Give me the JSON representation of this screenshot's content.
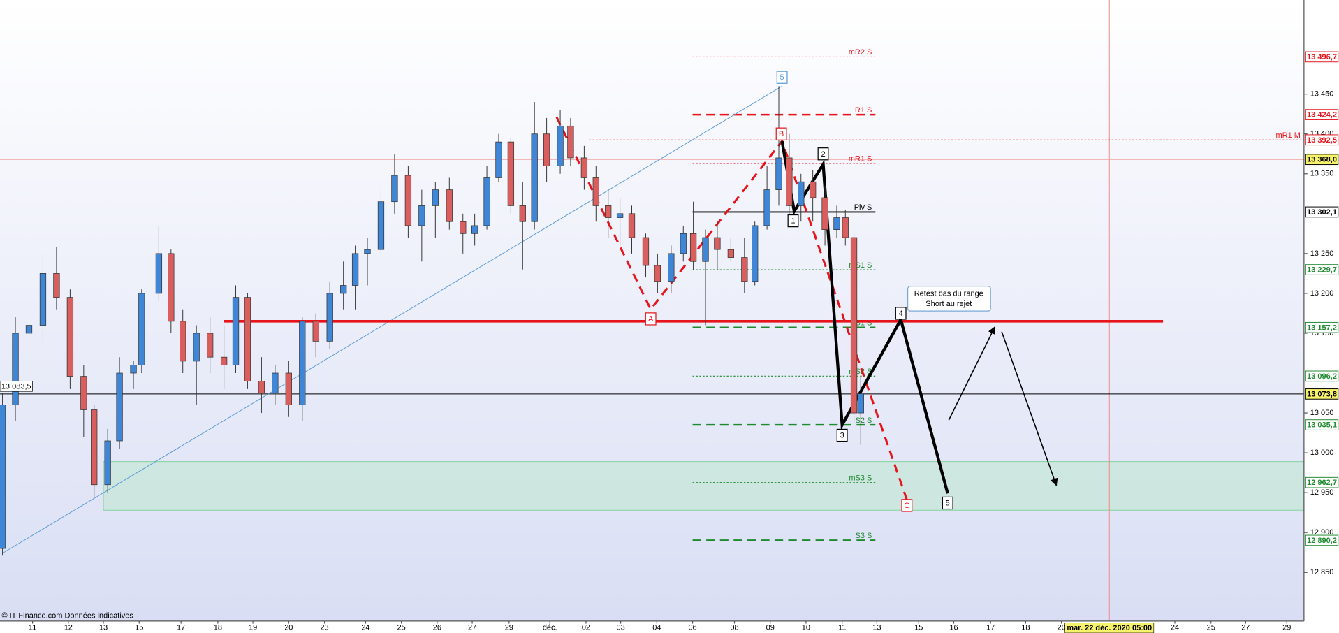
{
  "chart_data": {
    "type": "candlestick",
    "x": [
      -0.84,
      -0.48,
      -0.1,
      0.29,
      0.67,
      1.05,
      1.43,
      1.72,
      2.1,
      2.43,
      2.82,
      3.05,
      3.53,
      3.87,
      4.2,
      4.58,
      4.96,
      5.35,
      5.68,
      6.01,
      6.4,
      6.78,
      7.16,
      7.54,
      7.92,
      8.31,
      8.69,
      9.02,
      9.36,
      9.74,
      10.12,
      10.5,
      10.88,
      11.26,
      11.65,
      12.03,
      12.36,
      12.7,
      13.03,
      13.37,
      13.7,
      14.03,
      14.37,
      14.75,
      15.04,
      15.42,
      15.75,
      16.09,
      16.42,
      16.75,
      17.14,
      17.47,
      17.85,
      18.19,
      18.47,
      18.81,
      19.14,
      19.52,
      19.9,
      20.19,
      20.53,
      20.86,
      21.15,
      21.48,
      21.81,
      22.15,
      22.48,
      22.72,
      22.96,
      23.15
    ],
    "open": [
      12880,
      13060,
      13150,
      13160,
      13225,
      13195,
      13096,
      13054,
      12960,
      13015,
      13100,
      13110,
      13200,
      13250,
      13165,
      13115,
      13150,
      13120,
      13110,
      13195,
      13090,
      13075,
      13100,
      13060,
      13165,
      13140,
      13200,
      13210,
      13250,
      13255,
      13315,
      13348,
      13285,
      13310,
      13330,
      13290,
      13275,
      13285,
      13345,
      13390,
      13310,
      13290,
      13400,
      13360,
      13410,
      13370,
      13345,
      13310,
      13295,
      13300,
      13270,
      13235,
      13215,
      13250,
      13275,
      13240,
      13270,
      13255,
      13245,
      13215,
      13285,
      13330,
      13370,
      13310,
      13340,
      13320,
      13280,
      13295,
      13270,
      13050
    ],
    "high": [
      13075,
      13170,
      13215,
      13250,
      13258,
      13205,
      13110,
      13060,
      13030,
      13120,
      13115,
      13205,
      13285,
      13255,
      13180,
      13160,
      13170,
      13160,
      13210,
      13200,
      13120,
      13110,
      13115,
      13170,
      13175,
      13215,
      13240,
      13260,
      13270,
      13330,
      13375,
      13360,
      13330,
      13340,
      13345,
      13300,
      13300,
      13360,
      13400,
      13395,
      13340,
      13440,
      13420,
      13430,
      13420,
      13385,
      13360,
      13330,
      13320,
      13310,
      13275,
      13250,
      13260,
      13285,
      13315,
      13280,
      13290,
      13270,
      13270,
      13290,
      13360,
      13460,
      13400,
      13350,
      13355,
      13335,
      13310,
      13305,
      13275,
      13095
    ],
    "low": [
      12871,
      13040,
      13120,
      13140,
      13180,
      13080,
      13020,
      12945,
      12950,
      13005,
      13080,
      13100,
      13190,
      13150,
      13100,
      13060,
      13100,
      13080,
      13100,
      13080,
      13050,
      13060,
      13045,
      13040,
      13120,
      13130,
      13180,
      13180,
      13210,
      13250,
      13300,
      13270,
      13240,
      13270,
      13280,
      13250,
      13260,
      13280,
      13340,
      13300,
      13230,
      13280,
      13340,
      13350,
      13360,
      13330,
      13290,
      13270,
      13260,
      13250,
      13220,
      13200,
      13200,
      13240,
      13230,
      13160,
      13230,
      13240,
      13200,
      13210,
      13280,
      13310,
      13290,
      13290,
      13290,
      13260,
      13270,
      13260,
      13040,
      13010
    ],
    "close": [
      13060,
      13150,
      13160,
      13225,
      13195,
      13096,
      13054,
      12960,
      13015,
      13100,
      13110,
      13200,
      13250,
      13165,
      13115,
      13150,
      13120,
      13110,
      13195,
      13090,
      13075,
      13100,
      13060,
      13165,
      13140,
      13200,
      13210,
      13250,
      13255,
      13315,
      13348,
      13285,
      13310,
      13330,
      13290,
      13275,
      13285,
      13345,
      13390,
      13310,
      13290,
      13400,
      13360,
      13410,
      13370,
      13345,
      13310,
      13295,
      13300,
      13270,
      13235,
      13215,
      13250,
      13275,
      13240,
      13270,
      13255,
      13245,
      13215,
      13285,
      13330,
      13370,
      13310,
      13340,
      13320,
      13280,
      13295,
      13270,
      13050,
      13074
    ],
    "up_color": "#3f86d6",
    "down_color": "#d95f5f",
    "xlim": [
      -0.91,
      35.54
    ],
    "ylim": [
      12789,
      13568
    ],
    "xticks": [
      {
        "value": 0,
        "label": "11"
      },
      {
        "value": 1.0,
        "label": "12"
      },
      {
        "value": 1.98,
        "label": "13"
      },
      {
        "value": 2.98,
        "label": "15"
      },
      {
        "value": 4.15,
        "label": "17"
      },
      {
        "value": 5.18,
        "label": "18"
      },
      {
        "value": 6.16,
        "label": "19"
      },
      {
        "value": 7.16,
        "label": "20"
      },
      {
        "value": 8.16,
        "label": "23"
      },
      {
        "value": 9.31,
        "label": "24"
      },
      {
        "value": 10.31,
        "label": "25"
      },
      {
        "value": 11.31,
        "label": "26"
      },
      {
        "value": 12.29,
        "label": "27"
      },
      {
        "value": 13.32,
        "label": "29"
      },
      {
        "value": 14.46,
        "label": "déc."
      },
      {
        "value": 15.47,
        "label": "02"
      },
      {
        "value": 16.44,
        "label": "03"
      },
      {
        "value": 17.45,
        "label": "04"
      },
      {
        "value": 18.45,
        "label": "06"
      },
      {
        "value": 19.62,
        "label": "08"
      },
      {
        "value": 20.62,
        "label": "09"
      },
      {
        "value": 21.62,
        "label": "10"
      },
      {
        "value": 22.63,
        "label": "11"
      },
      {
        "value": 23.6,
        "label": "13"
      },
      {
        "value": 24.77,
        "label": "15"
      },
      {
        "value": 25.75,
        "label": "16"
      },
      {
        "value": 26.78,
        "label": "17"
      },
      {
        "value": 27.76,
        "label": "18"
      },
      {
        "value": 28.76,
        "label": "20"
      },
      {
        "value": 31.93,
        "label": "24"
      },
      {
        "value": 32.94,
        "label": "25"
      },
      {
        "value": 33.91,
        "label": "27"
      },
      {
        "value": 35.06,
        "label": "29"
      }
    ],
    "yticks": [
      {
        "value": 13450,
        "label": "13 450"
      },
      {
        "value": 13400,
        "label": "13 400"
      },
      {
        "value": 13350,
        "label": "13 350"
      },
      {
        "value": 13250,
        "label": "13 250"
      },
      {
        "value": 13200,
        "label": "13 200"
      },
      {
        "value": 13150,
        "label": "13 150"
      },
      {
        "value": 13050,
        "label": "13 050"
      },
      {
        "value": 13000,
        "label": "13 000"
      },
      {
        "value": 12950,
        "label": "12 950"
      },
      {
        "value": 12900,
        "label": "12 900"
      },
      {
        "value": 12850,
        "label": "12 850"
      }
    ],
    "levels": [
      {
        "name": "mR2 S",
        "value": 13496.7,
        "label": "13 496,7",
        "color": "#e8141b",
        "style": "dotted",
        "x": [
          18.45,
          23.56
        ]
      },
      {
        "name": "R1 S",
        "value": 13424.2,
        "label": "13 424,2",
        "color": "#e8141b",
        "style": "dashed",
        "x": [
          18.45,
          23.56
        ]
      },
      {
        "name": "mR1 M",
        "value": 13392.5,
        "label": "13 392,5",
        "color": "#e8141b",
        "style": "dotted",
        "x": [
          15.56,
          35.54
        ]
      },
      {
        "name": "mR1 S",
        "value": 13363,
        "color": "#e8141b",
        "style": "dotted",
        "x": [
          18.45,
          23.56
        ]
      },
      {
        "name": "Piv S",
        "value": 13302.1,
        "label": "13 302,1",
        "color": "#000000",
        "style": "solid",
        "x": [
          18.45,
          23.56
        ]
      },
      {
        "name": "mS1 S",
        "value": 13229.7,
        "label": "13 229,7",
        "color": "#1e8a2e",
        "style": "dotted",
        "x": [
          18.45,
          23.56
        ]
      },
      {
        "name": "S1 S",
        "value": 13157.2,
        "label": "13 157,2",
        "color": "#1e8a2e",
        "style": "dashed",
        "x": [
          18.45,
          23.56
        ]
      },
      {
        "name": "mS2 S",
        "value": 13096.2,
        "label": "13 096,2",
        "color": "#1e8a2e",
        "style": "dotted",
        "x": [
          18.45,
          23.56
        ]
      },
      {
        "name": "S2 S",
        "value": 13035.1,
        "label": "13 035,1",
        "color": "#1e8a2e",
        "style": "dashed",
        "x": [
          18.45,
          23.56
        ]
      },
      {
        "name": "mS3 S",
        "value": 12962.7,
        "label": "12 962,7",
        "color": "#1e8a2e",
        "style": "dotted",
        "x": [
          18.45,
          23.56
        ]
      },
      {
        "name": "S3 S",
        "value": 12890.2,
        "label": "12 890,2",
        "color": "#1e8a2e",
        "style": "dashed",
        "x": [
          18.45,
          23.56
        ]
      }
    ],
    "price_lines": [
      {
        "value": 13368.0,
        "label": "13 368,0",
        "color": "#f4a0a0"
      },
      {
        "value": 13073.8,
        "label": "13 073,8",
        "color": "#000000"
      }
    ],
    "crosshair": {
      "value": 13083.5,
      "label": "13 083,5"
    },
    "cursor": {
      "x": 30.1,
      "label": "mar. 22 déc. 2020 05:00"
    },
    "zone": {
      "x": [
        1.98,
        35.54
      ],
      "y": [
        12928,
        12989
      ],
      "color": "#bfe8d2"
    },
    "lines": [
      {
        "color": "#5b9bd5",
        "width": 0.8,
        "x": [
          -0.84,
          20.95
        ],
        "y": [
          12874,
          13460
        ]
      },
      {
        "color": "#e8141b",
        "width": 3,
        "x": [
          5.35,
          31.6
        ],
        "y": [
          13165,
          13165
        ]
      },
      {
        "color": "#e8141b",
        "width": 2.5,
        "dash": "10,7",
        "x": [
          14.65,
          17.28,
          20.95,
          24.44
        ],
        "y": [
          13421,
          13180,
          13391,
          12941
        ]
      },
      {
        "color": "#000000",
        "width": 3.5,
        "x": [
          20.95,
          21.29,
          22.1,
          22.63,
          24.27,
          25.58
        ],
        "y": [
          13391,
          13303,
          13362,
          13035,
          13167,
          12949
        ]
      },
      {
        "color": "#000000",
        "width": 1.3,
        "arrow": true,
        "x": [
          25.61,
          26.9
        ],
        "y": [
          13041,
          13158
        ]
      },
      {
        "color": "#000000",
        "width": 1.3,
        "arrow": true,
        "x": [
          27.09,
          28.62
        ],
        "y": [
          13152,
          12959
        ]
      }
    ],
    "labels": [
      {
        "text": "5",
        "x": 20.95,
        "y": 13471,
        "color": "#5b9bd5"
      },
      {
        "text": "A",
        "x": 17.28,
        "y": 13168,
        "color": "#e8141b"
      },
      {
        "text": "B",
        "x": 20.93,
        "y": 13400,
        "color": "#e8141b"
      },
      {
        "text": "C",
        "x": 24.44,
        "y": 12934,
        "color": "#e8141b"
      },
      {
        "text": "1",
        "x": 21.26,
        "y": 13291,
        "color": "#000000"
      },
      {
        "text": "2",
        "x": 22.1,
        "y": 13375,
        "color": "#000000"
      },
      {
        "text": "3",
        "x": 22.63,
        "y": 13022,
        "color": "#000000"
      },
      {
        "text": "4",
        "x": 24.27,
        "y": 13175,
        "color": "#000000"
      },
      {
        "text": "5",
        "x": 25.58,
        "y": 12937,
        "color": "#000000"
      }
    ],
    "note": {
      "x": 25.61,
      "y": 13194,
      "lines": [
        "Retest bas du range",
        "Short au rejet"
      ]
    },
    "footer": "© IT-Finance.com  Données indicatives"
  }
}
